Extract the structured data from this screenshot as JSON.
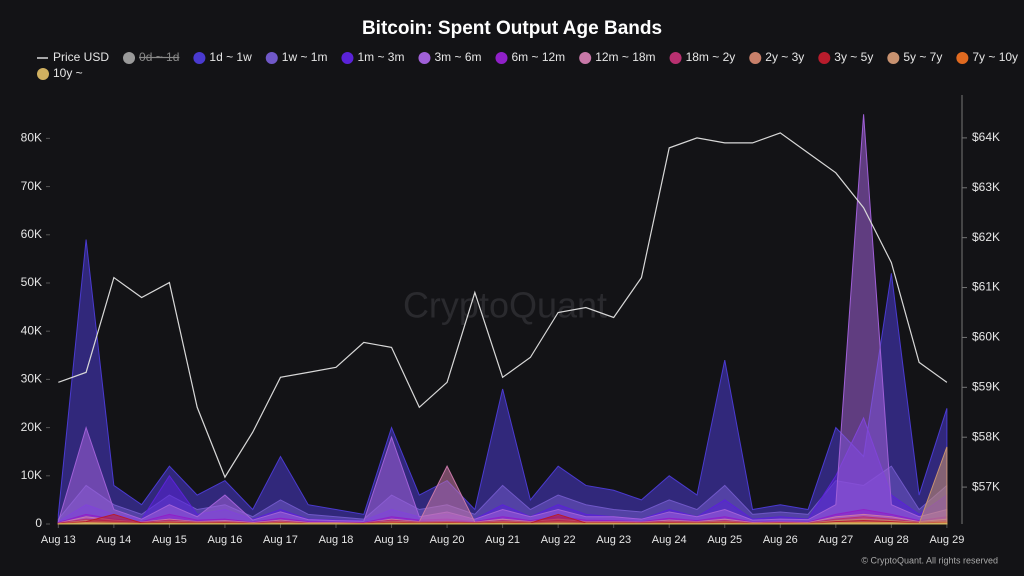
{
  "chart_data": {
    "type": "area",
    "title": "Bitcoin: Spent Output Age Bands",
    "x": [
      13,
      13.5,
      14,
      14.5,
      15,
      15.5,
      16,
      16.5,
      17,
      17.5,
      18,
      18.5,
      19,
      19.5,
      20,
      20.5,
      21,
      21.5,
      22,
      22.5,
      23,
      23.5,
      24,
      24.5,
      25,
      25.5,
      26,
      26.5,
      27,
      27.5,
      28,
      28.5,
      29
    ],
    "xlim": [
      12.85,
      29.2
    ],
    "xticks": [
      {
        "value": 13,
        "label": "Aug 13"
      },
      {
        "value": 14,
        "label": "Aug 14"
      },
      {
        "value": 15,
        "label": "Aug 15"
      },
      {
        "value": 16,
        "label": "Aug 16"
      },
      {
        "value": 17,
        "label": "Aug 17"
      },
      {
        "value": 18,
        "label": "Aug 18"
      },
      {
        "value": 19,
        "label": "Aug 19"
      },
      {
        "value": 20,
        "label": "Aug 20"
      },
      {
        "value": 21,
        "label": "Aug 21"
      },
      {
        "value": 22,
        "label": "Aug 22"
      },
      {
        "value": 23,
        "label": "Aug 23"
      },
      {
        "value": 24,
        "label": "Aug 24"
      },
      {
        "value": 25,
        "label": "Aug 25"
      },
      {
        "value": 26,
        "label": "Aug 26"
      },
      {
        "value": 27,
        "label": "Aug 27"
      },
      {
        "value": 28,
        "label": "Aug 28"
      },
      {
        "value": 29,
        "label": "Aug 29"
      }
    ],
    "ylim": [
      0,
      89000
    ],
    "yticks": [
      0,
      {
        "value": 10000,
        "label": "10K"
      },
      {
        "value": 20000,
        "label": "20K"
      },
      {
        "value": 30000,
        "label": "30K"
      },
      {
        "value": 40000,
        "label": "40K"
      },
      {
        "value": 50000,
        "label": "50K"
      },
      {
        "value": 60000,
        "label": "60K"
      },
      {
        "value": 70000,
        "label": "70K"
      },
      {
        "value": 80000,
        "label": "80K"
      }
    ],
    "y2lim": [
      56260,
      64860
    ],
    "y2ticks": [
      {
        "value": 57000,
        "label": "$57K"
      },
      {
        "value": 58000,
        "label": "$58K"
      },
      {
        "value": 59000,
        "label": "$59K"
      },
      {
        "value": 60000,
        "label": "$60K"
      },
      {
        "value": 61000,
        "label": "$61K"
      },
      {
        "value": 62000,
        "label": "$62K"
      },
      {
        "value": 63000,
        "label": "$63K"
      },
      {
        "value": 64000,
        "label": "$64K"
      }
    ],
    "series": [
      {
        "name": "Price USD",
        "color": "#d8d8d8",
        "type": "line",
        "axis": "y2",
        "values": [
          59100,
          59300,
          61200,
          60800,
          61100,
          58600,
          57200,
          58100,
          59200,
          59300,
          59400,
          59900,
          59800,
          58600,
          59100,
          60900,
          59200,
          59600,
          60500,
          60600,
          60400,
          61200,
          63800,
          64000,
          63900,
          63900,
          64100,
          63700,
          63300,
          62600,
          61500,
          59500,
          59100
        ]
      },
      {
        "name": "0d ~ 1d",
        "color": "#9a9a9a",
        "visible": false
      },
      {
        "name": "1d ~ 1w",
        "color": "#4a3ad0",
        "values": [
          2000,
          59000,
          8000,
          4000,
          12000,
          6000,
          9000,
          3000,
          14000,
          4000,
          3000,
          2000,
          20000,
          6000,
          9000,
          3000,
          28000,
          5000,
          12000,
          8000,
          7000,
          5000,
          10000,
          6000,
          34000,
          3000,
          4000,
          3000,
          20000,
          14000,
          52000,
          6000,
          24000
        ]
      },
      {
        "name": "1w ~ 1m",
        "color": "#7058c8",
        "values": [
          1000,
          8000,
          4000,
          2000,
          6000,
          3000,
          4000,
          1500,
          5000,
          2000,
          1500,
          1000,
          6000,
          3000,
          4000,
          2000,
          8000,
          3000,
          6000,
          4000,
          3000,
          2500,
          5000,
          3000,
          8000,
          2000,
          2500,
          2000,
          9000,
          8000,
          12000,
          3000,
          8000
        ]
      },
      {
        "name": "1m ~ 3m",
        "color": "#5a22d8",
        "values": [
          500,
          4000,
          2000,
          1000,
          10000,
          2000,
          3000,
          1000,
          3000,
          1000,
          800,
          700,
          3000,
          1500,
          2000,
          1000,
          4000,
          1500,
          4000,
          2000,
          1500,
          1000,
          3000,
          1500,
          5000,
          1000,
          1500,
          1000,
          10000,
          22000,
          6000,
          2000,
          6000
        ]
      },
      {
        "name": "3m ~ 6m",
        "color": "#a060d8",
        "values": [
          500,
          20000,
          3000,
          1000,
          4000,
          1500,
          6000,
          800,
          2500,
          900,
          700,
          600,
          18000,
          1500,
          2500,
          1000,
          3000,
          1500,
          3000,
          1500,
          1500,
          1000,
          2500,
          1500,
          3000,
          800,
          1000,
          900,
          4000,
          85000,
          4000,
          1500,
          3000
        ]
      },
      {
        "name": "6m ~ 12m",
        "color": "#9020c8",
        "values": [
          300,
          2000,
          1000,
          500,
          2000,
          800,
          1000,
          400,
          1200,
          500,
          400,
          300,
          1500,
          800,
          1000,
          500,
          1500,
          700,
          1500,
          800,
          700,
          500,
          1200,
          700,
          1500,
          400,
          500,
          400,
          2000,
          3000,
          2000,
          700,
          1500
        ]
      },
      {
        "name": "12m ~ 18m",
        "color": "#c878a8",
        "values": [
          200,
          1500,
          800,
          400,
          1000,
          500,
          700,
          300,
          800,
          300,
          300,
          200,
          1000,
          500,
          12000,
          400,
          1000,
          500,
          1000,
          500,
          500,
          400,
          800,
          500,
          1000,
          300,
          400,
          300,
          1500,
          2000,
          1500,
          500,
          1000
        ]
      },
      {
        "name": "18m ~ 2y",
        "color": "#b83070",
        "values": [
          200,
          1000,
          600,
          300,
          800,
          400,
          500,
          200,
          600,
          200,
          200,
          200,
          800,
          400,
          500,
          300,
          700,
          400,
          700,
          400,
          400,
          300,
          600,
          400,
          700,
          200,
          300,
          200,
          1000,
          1500,
          1000,
          400,
          700
        ]
      },
      {
        "name": "2y ~ 3y",
        "color": "#c8806a",
        "values": [
          100,
          700,
          400,
          200,
          500,
          300,
          400,
          150,
          400,
          150,
          150,
          100,
          500,
          300,
          400,
          200,
          500,
          300,
          500,
          300,
          300,
          200,
          400,
          300,
          500,
          150,
          200,
          150,
          700,
          1000,
          700,
          300,
          500
        ]
      },
      {
        "name": "3y ~ 5y",
        "color": "#b81c2c",
        "values": [
          100,
          500,
          2000,
          200,
          400,
          200,
          300,
          100,
          300,
          100,
          100,
          100,
          400,
          200,
          300,
          150,
          400,
          200,
          2000,
          200,
          200,
          150,
          300,
          200,
          400,
          100,
          150,
          100,
          500,
          700,
          500,
          200,
          400
        ]
      },
      {
        "name": "5y ~ 7y",
        "color": "#c89270",
        "values": [
          50,
          300,
          200,
          100,
          200,
          100,
          150,
          50,
          200,
          80,
          80,
          50,
          200,
          100,
          150,
          80,
          200,
          100,
          200,
          100,
          100,
          80,
          150,
          100,
          200,
          50,
          80,
          50,
          300,
          400,
          300,
          100,
          16000
        ]
      },
      {
        "name": "7y ~ 10y",
        "color": "#e06a20",
        "values": [
          50,
          200,
          150,
          80,
          150,
          80,
          100,
          50,
          150,
          60,
          60,
          50,
          150,
          80,
          100,
          60,
          150,
          80,
          150,
          80,
          80,
          60,
          100,
          80,
          150,
          50,
          60,
          50,
          200,
          300,
          200,
          80,
          200
        ]
      },
      {
        "name": "10y ~",
        "color": "#d0b060",
        "values": [
          30,
          150,
          100,
          50,
          100,
          50,
          80,
          30,
          100,
          40,
          40,
          30,
          100,
          50,
          80,
          40,
          100,
          50,
          100,
          50,
          50,
          40,
          80,
          50,
          100,
          30,
          40,
          30,
          150,
          200,
          150,
          50,
          150
        ]
      }
    ],
    "watermark": "CryptoQuant",
    "footer": "© CryptoQuant. All rights reserved"
  }
}
